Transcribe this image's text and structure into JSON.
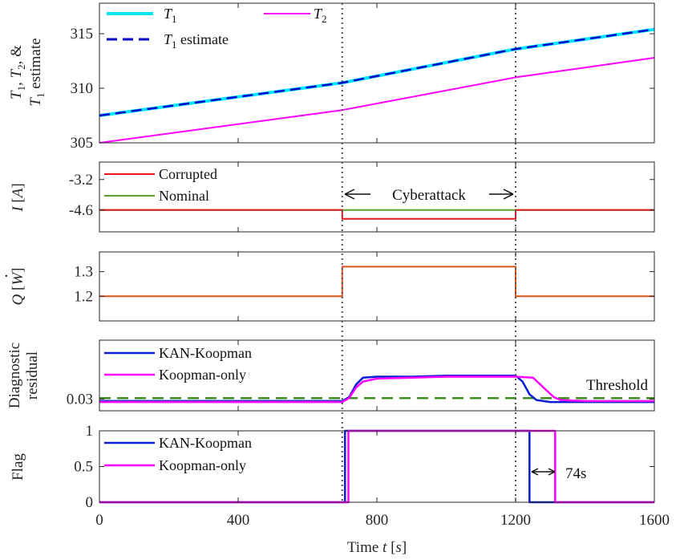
{
  "chart_data": [
    {
      "type": "line",
      "ylabel": [
        "T1, T2, &",
        "T1 estimate"
      ],
      "xlim": [
        0,
        1600
      ],
      "ylim": [
        305,
        317.8
      ],
      "yticks": [
        305,
        310,
        315
      ],
      "series": [
        {
          "name": "T1",
          "legend": "T1",
          "color": "#00e5ff",
          "style": "solid",
          "x": [
            0,
            700,
            1200,
            1600
          ],
          "y": [
            307.5,
            310.5,
            313.6,
            315.4
          ]
        },
        {
          "name": "T1 estimate",
          "legend": "T1 estimate",
          "color": "#0000cc",
          "style": "dashed",
          "x": [
            0,
            700,
            1200,
            1600
          ],
          "y": [
            307.5,
            310.5,
            313.6,
            315.4
          ]
        },
        {
          "name": "T2",
          "legend": "T2",
          "color": "#ff00ff",
          "style": "solid",
          "x": [
            0,
            700,
            1200,
            1600
          ],
          "y": [
            305.0,
            308.0,
            311.0,
            312.8
          ]
        }
      ]
    },
    {
      "type": "line",
      "ylabel": "I [A]",
      "xlim": [
        0,
        1600
      ],
      "ylim": [
        -5.6,
        -2.4
      ],
      "yticks": [
        -4.6,
        -3.2
      ],
      "annotation": "Cyberattack",
      "series": [
        {
          "name": "Nominal",
          "color": "#5aa02c",
          "style": "solid",
          "x": [
            0,
            1600
          ],
          "y": [
            -4.6,
            -4.6
          ]
        },
        {
          "name": "Corrupted",
          "color": "#e8141e",
          "style": "solid",
          "x": [
            0,
            700,
            700,
            1200,
            1200,
            1600
          ],
          "y": [
            -4.6,
            -4.6,
            -5.0,
            -5.0,
            -4.6,
            -4.6
          ]
        }
      ]
    },
    {
      "type": "line",
      "ylabel": "Q dot [W]",
      "xlim": [
        0,
        1600
      ],
      "ylim": [
        1.1,
        1.38
      ],
      "yticks": [
        1.2,
        1.3
      ],
      "series": [
        {
          "name": "Q dot",
          "color": "#d9541a",
          "style": "solid",
          "x": [
            0,
            700,
            700,
            1200,
            1200,
            1600
          ],
          "y": [
            1.2,
            1.2,
            1.32,
            1.32,
            1.2,
            1.2
          ]
        }
      ]
    },
    {
      "type": "line",
      "ylabel": [
        "Diagnostic",
        "residual"
      ],
      "xlim": [
        0,
        1600
      ],
      "ylim": [
        0.018,
        0.0905
      ],
      "yticks": [
        0.03
      ],
      "threshold": {
        "label": "Threshold",
        "value": 0.031,
        "color": "#3c8c1e"
      },
      "series": [
        {
          "name": "KAN-Koopman",
          "color": "#0a1ed2",
          "style": "solid",
          "x": [
            0,
            700,
            720,
            740,
            760,
            800,
            900,
            1000,
            1100,
            1200,
            1220,
            1240,
            1260,
            1300,
            1350,
            1600
          ],
          "y": [
            0.028,
            0.028,
            0.032,
            0.045,
            0.052,
            0.053,
            0.053,
            0.054,
            0.054,
            0.054,
            0.048,
            0.035,
            0.029,
            0.027,
            0.027,
            0.027
          ]
        },
        {
          "name": "Koopman-only",
          "color": "#ff00ff",
          "style": "solid",
          "x": [
            0,
            700,
            720,
            740,
            760,
            800,
            900,
            1000,
            1100,
            1200,
            1250,
            1280,
            1310,
            1330,
            1400,
            1600
          ],
          "y": [
            0.027,
            0.027,
            0.031,
            0.042,
            0.048,
            0.051,
            0.052,
            0.053,
            0.053,
            0.053,
            0.052,
            0.042,
            0.032,
            0.029,
            0.028,
            0.028
          ]
        }
      ]
    },
    {
      "type": "line",
      "ylabel": "Flag",
      "xlabel": "Time t [s]",
      "xlim": [
        0,
        1600
      ],
      "ylim": [
        0,
        1
      ],
      "yticks": [
        0,
        0.5,
        1
      ],
      "xticks": [
        0,
        400,
        800,
        1200,
        1600
      ],
      "annotation": "74s",
      "series": [
        {
          "name": "KAN-Koopman",
          "color": "#0a1ed2",
          "style": "solid",
          "x": [
            0,
            708,
            708,
            1240,
            1240,
            1600
          ],
          "y": [
            0,
            0,
            1,
            1,
            0,
            0
          ]
        },
        {
          "name": "Koopman-only",
          "color": "#ff00ff",
          "style": "solid",
          "x": [
            0,
            718,
            718,
            1314,
            1314,
            1600
          ],
          "y": [
            0,
            0,
            1,
            1,
            0,
            0
          ]
        }
      ]
    }
  ],
  "legends": {
    "p1": {
      "t1": "T",
      "t1_sub": "1",
      "t2": "T",
      "t2_sub": "2",
      "est": "T",
      "est_sub": "1",
      "est_suffix": " estimate"
    },
    "p2": {
      "corrupted": "Corrupted",
      "nominal": "Nominal"
    },
    "p4": {
      "kan": "KAN-Koopman",
      "koop": "Koopman-only"
    },
    "p5": {
      "kan": "KAN-Koopman",
      "koop": "Koopman-only"
    }
  },
  "axis_labels": {
    "p1_line1_a": "T",
    "p1_line1_a_sub": "1",
    "p1_line1_b": ", ",
    "p1_line1_c": "T",
    "p1_line1_c_sub": "2",
    "p1_line1_d": ", &",
    "p1_line2_a": "T",
    "p1_line2_a_sub": "1",
    "p1_line2_b": " estimate",
    "p2_i": "I",
    "p2_unit": " [",
    "p2_a": "A",
    "p2_close": "]",
    "p3_q": "Q",
    "p3_unit": " [",
    "p3_w": "W",
    "p3_close": "]",
    "p4_line1": "Diagnostic",
    "p4_line2": "residual",
    "p5": "Flag",
    "x_prefix": "Time ",
    "x_t": "t",
    "x_open": " [",
    "x_s": "s",
    "x_close": "]"
  },
  "tick_labels": {
    "p1": [
      "305",
      "310",
      "315"
    ],
    "p2": [
      "-4.6",
      "-3.2"
    ],
    "p3": [
      "1.2",
      "1.3"
    ],
    "p4": [
      "0.03"
    ],
    "p5": [
      "0",
      "0.5",
      "1"
    ],
    "x": [
      "0",
      "400",
      "800",
      "1200",
      "1600"
    ]
  },
  "attack_window": {
    "start": 700,
    "end": 1200
  },
  "annotations": {
    "cyberattack": "Cyberattack",
    "threshold": "Threshold",
    "delay": "74s"
  }
}
